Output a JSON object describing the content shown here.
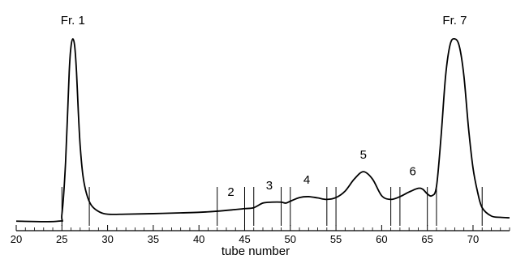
{
  "chart_data": {
    "type": "line",
    "title": "",
    "xlabel": "tube number",
    "ylabel": "",
    "xlim": [
      20,
      74
    ],
    "ylim": [
      0,
      1
    ],
    "grid": false,
    "x_ticks_major": [
      20,
      25,
      30,
      35,
      40,
      45,
      50,
      55,
      60,
      65,
      70
    ],
    "x_tick_labels": [
      "20",
      "25",
      "30",
      "35",
      "40",
      "45",
      "50",
      "55",
      "60",
      "65",
      "70"
    ],
    "series": [
      {
        "x": [
          20,
          24.6,
          25.0,
          25.4,
          25.8,
          26.0,
          26.2,
          26.4,
          26.6,
          26.8,
          27.0,
          27.3,
          27.7,
          28.2,
          29,
          30,
          32,
          35,
          38,
          40,
          42,
          44,
          45,
          46,
          47,
          48,
          49,
          49.5,
          50,
          51,
          52,
          53,
          54,
          55,
          56,
          57,
          58,
          59,
          60,
          61,
          62,
          63,
          64,
          64.5,
          65,
          65.5,
          66,
          66.5,
          67,
          67.5,
          68,
          68.5,
          69,
          69.5,
          70,
          70.5,
          71,
          72,
          73,
          74
        ],
        "y": [
          0.012,
          0.012,
          0.05,
          0.33,
          0.82,
          0.96,
          1.0,
          0.96,
          0.82,
          0.6,
          0.42,
          0.26,
          0.16,
          0.1,
          0.065,
          0.05,
          0.05,
          0.053,
          0.057,
          0.06,
          0.066,
          0.075,
          0.08,
          0.085,
          0.11,
          0.115,
          0.115,
          0.11,
          0.12,
          0.14,
          0.145,
          0.138,
          0.13,
          0.14,
          0.175,
          0.24,
          0.28,
          0.24,
          0.15,
          0.13,
          0.145,
          0.17,
          0.19,
          0.185,
          0.16,
          0.15,
          0.2,
          0.47,
          0.8,
          0.97,
          1.0,
          0.96,
          0.8,
          0.52,
          0.3,
          0.17,
          0.085,
          0.04,
          0.033,
          0.03
        ]
      }
    ],
    "fraction_labels": [
      {
        "label": "Fr. 1",
        "x": 26.2,
        "y": 1.0
      },
      {
        "label": "2",
        "x": 43.5,
        "y": 0.08
      },
      {
        "label": "3",
        "x": 47.7,
        "y": 0.115
      },
      {
        "label": "4",
        "x": 51.8,
        "y": 0.145
      },
      {
        "label": "5",
        "x": 58.0,
        "y": 0.28
      },
      {
        "label": "6",
        "x": 63.4,
        "y": 0.19
      },
      {
        "label": "Fr. 7",
        "x": 68.0,
        "y": 1.0
      }
    ],
    "fraction_boundaries": [
      25,
      28,
      42,
      45,
      46,
      49,
      50,
      54,
      55,
      61,
      62,
      65,
      66,
      71
    ]
  }
}
